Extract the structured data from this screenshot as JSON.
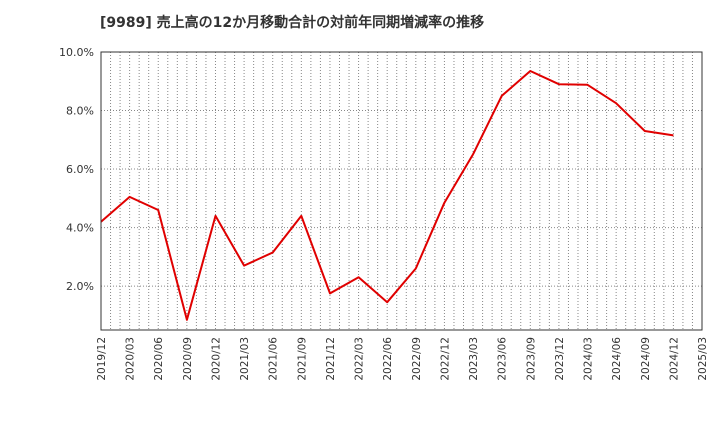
{
  "chart_data": {
    "type": "line",
    "title": "[9989]  売上高の12か月移動合計の対前年同期増減率の推移",
    "xlabel": "",
    "ylabel": "",
    "ylim": [
      0.5,
      10.0
    ],
    "yticks": [
      2.0,
      4.0,
      6.0,
      8.0,
      10.0
    ],
    "ytick_labels": [
      "2.0%",
      "4.0%",
      "6.0%",
      "8.0%",
      "10.0%"
    ],
    "categories": [
      "2019/12",
      "2020/03",
      "2020/06",
      "2020/09",
      "2020/12",
      "2021/03",
      "2021/06",
      "2021/09",
      "2021/12",
      "2022/03",
      "2022/06",
      "2022/09",
      "2022/12",
      "2023/03",
      "2023/06",
      "2023/09",
      "2023/12",
      "2024/03",
      "2024/06",
      "2024/09",
      "2024/12",
      "2025/03"
    ],
    "grid": true,
    "series": [
      {
        "name": "売上高の12か月移動合計の対前年同期増減率",
        "color": "#e00000",
        "values": [
          4.2,
          5.05,
          4.6,
          0.85,
          4.4,
          2.7,
          3.15,
          4.4,
          1.75,
          2.3,
          1.45,
          2.6,
          4.85,
          6.5,
          8.5,
          9.35,
          8.9,
          8.88,
          8.25,
          7.3,
          7.15,
          null
        ]
      }
    ]
  }
}
